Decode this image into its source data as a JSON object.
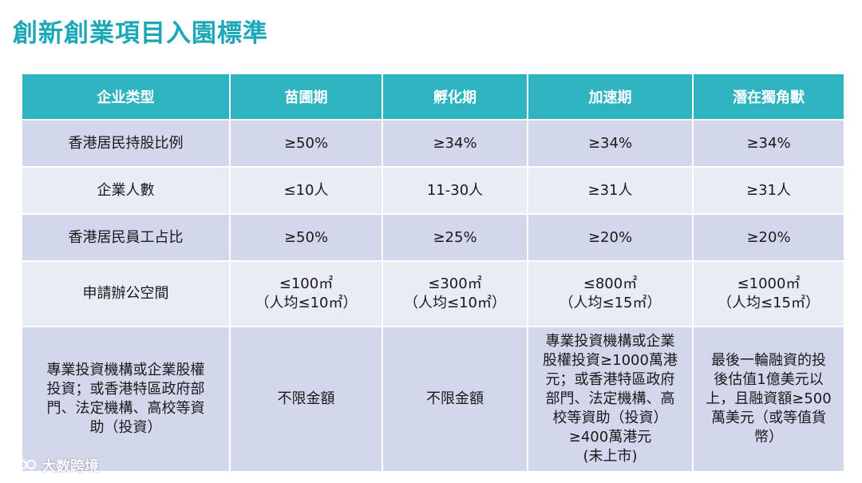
{
  "title": "創新創業項目入園標準",
  "table": {
    "headers": [
      "企业类型",
      "苗圃期",
      "孵化期",
      "加速期",
      "潛在獨角獸"
    ],
    "rows": [
      {
        "label": "香港居民持股比例",
        "cells": [
          "≥50%",
          "≥34%",
          "≥34%",
          "≥34%"
        ]
      },
      {
        "label": "企業人數",
        "cells": [
          "≤10人",
          "11-30人",
          "≥31人",
          "≥31人"
        ]
      },
      {
        "label": "香港居民員工占比",
        "cells": [
          "≥50%",
          "≥25%",
          "≥20%",
          "≥20%"
        ]
      },
      {
        "label": "申請辦公空間",
        "cells": [
          "≤100㎡\n（人均≤10㎡）",
          "≤300㎡\n（人均≤10㎡）",
          "≤800㎡\n（人均≤15㎡）",
          "≤1000㎡\n（人均≤15㎡）"
        ]
      },
      {
        "label": "專業投資機構或企業股權\n投資；或香港特區政府部\n門、法定機構、高校等資\n助（投資）",
        "cells": [
          "不限金額",
          "不限金額",
          "專業投資機構或企業\n股權投資≥1000萬港\n元；或香港特區政府\n部門、法定機構、高\n校等資助（投資）\n≥400萬港元\n(未上市)",
          "最後一輪融資的投\n後估值1億美元以\n上，且融資額≥500\n萬美元（或等值貨\n幣）"
        ]
      }
    ]
  },
  "watermark": "大数跨境"
}
